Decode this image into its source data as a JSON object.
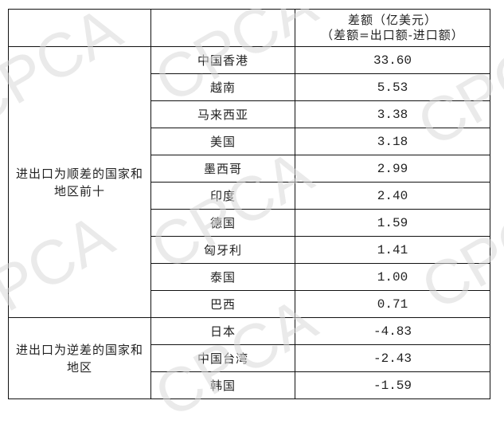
{
  "watermark": "CPCA",
  "table": {
    "header": {
      "col1": "",
      "col2": "",
      "col3_line1": "差额（亿美元）",
      "col3_line2": "（差额=出口额-进口额）"
    },
    "groups": [
      {
        "label": "进出口为顺差的国家和地区前十",
        "rows": [
          {
            "region": "中国香港",
            "value": "33.60"
          },
          {
            "region": "越南",
            "value": "5.53"
          },
          {
            "region": "马来西亚",
            "value": "3.38"
          },
          {
            "region": "美国",
            "value": "3.18"
          },
          {
            "region": "墨西哥",
            "value": "2.99"
          },
          {
            "region": "印度",
            "value": "2.40"
          },
          {
            "region": "德国",
            "value": "1.59"
          },
          {
            "region": "匈牙利",
            "value": "1.41"
          },
          {
            "region": "泰国",
            "value": "1.00"
          },
          {
            "region": "巴西",
            "value": "0.71"
          }
        ]
      },
      {
        "label": "进出口为逆差的国家和地区",
        "rows": [
          {
            "region": "日本",
            "value": "-4.83"
          },
          {
            "region": "中国台湾",
            "value": "-2.43"
          },
          {
            "region": "韩国",
            "value": "-1.59"
          }
        ]
      }
    ]
  }
}
